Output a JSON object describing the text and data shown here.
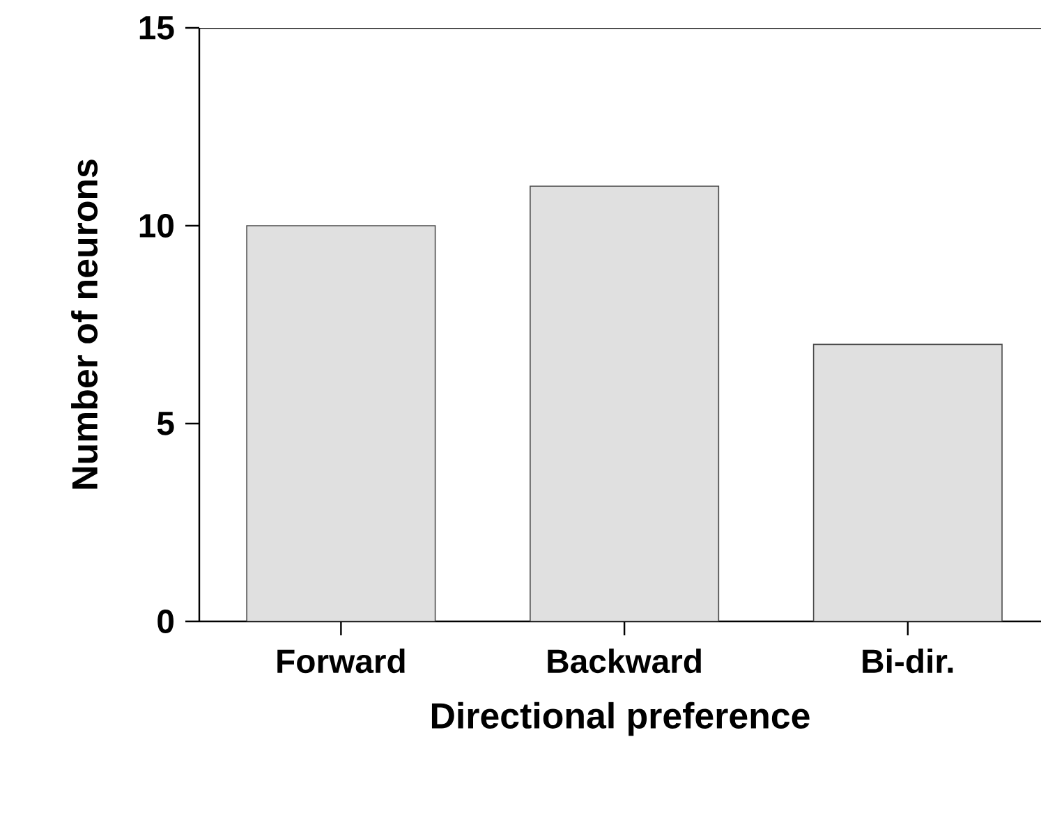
{
  "chart_data": {
    "type": "bar",
    "xlabel": "Directional preference",
    "ylabel": "Number of neurons",
    "categories": [
      "Forward",
      "Backward",
      "Bi-dir."
    ],
    "values": [
      10,
      11,
      7
    ],
    "color": "#e0e0e0",
    "ylim": [
      0,
      15
    ],
    "yticks": [
      0,
      5,
      10,
      15
    ],
    "grid": false
  }
}
